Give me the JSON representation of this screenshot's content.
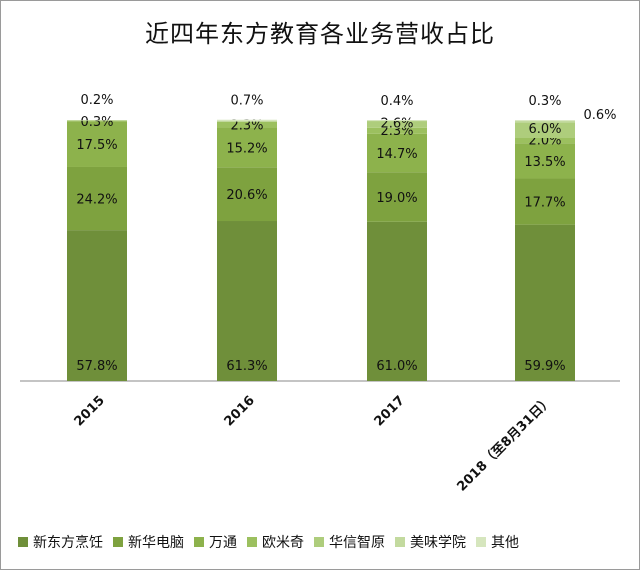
{
  "chart_data": {
    "type": "bar",
    "stacked": true,
    "title": "近四年东方教育各业务营收占比",
    "categories": [
      "2015",
      "2016",
      "2017",
      "2018（至8月31日）"
    ],
    "ylim": [
      0,
      100
    ],
    "grid": false,
    "legend_position": "bottom",
    "series": [
      {
        "name": "新东方烹饪",
        "color": "#6f8f3a",
        "values": [
          57.8,
          61.3,
          61.0,
          59.9
        ],
        "labels": [
          "57.8%",
          "61.3%",
          "61.0%",
          "59.9%"
        ]
      },
      {
        "name": "新华电脑",
        "color": "#7ea23f",
        "values": [
          24.2,
          20.6,
          19.0,
          17.7
        ],
        "labels": [
          "24.2%",
          "20.6%",
          "19.0%",
          "17.7%"
        ]
      },
      {
        "name": "万通",
        "color": "#8db24c",
        "values": [
          17.5,
          15.2,
          14.7,
          13.5
        ],
        "labels": [
          "17.5%",
          "15.2%",
          "14.7%",
          "13.5%"
        ]
      },
      {
        "name": "欧米奇",
        "color": "#9cc05f",
        "values": [
          0.3,
          2.3,
          2.3,
          2.0
        ],
        "labels": [
          "0.3%",
          "2.3%",
          "2.3%",
          "2.0%"
        ]
      },
      {
        "name": "华信智原",
        "color": "#aecd7c",
        "values": [
          0,
          0,
          2.6,
          6.0
        ],
        "labels": [
          "",
          "",
          "2.6%",
          "6.0%"
        ]
      },
      {
        "name": "美味学院",
        "color": "#c3da9f",
        "values": [
          0,
          0,
          0,
          0.6
        ],
        "labels": [
          "",
          "",
          "",
          "0.6%"
        ]
      },
      {
        "name": "其他",
        "color": "#d6e6be",
        "values": [
          0.2,
          0.7,
          0.4,
          0.3
        ],
        "labels": [
          "0.2%",
          "0.7%",
          "0.4%",
          "0.3%"
        ]
      }
    ]
  }
}
